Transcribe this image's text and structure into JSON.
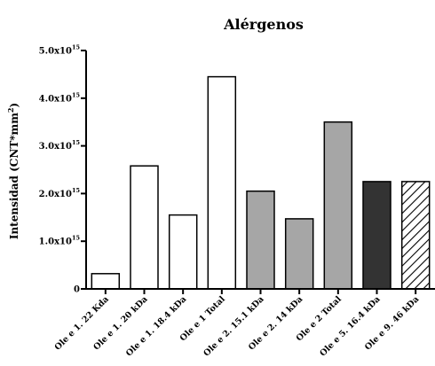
{
  "chart_data": {
    "type": "bar",
    "title": "Alérgenos",
    "ylabel": "Intensidad (CNT*mm²)",
    "xlabel": "",
    "ylim": [
      0,
      5000000000000000.0
    ],
    "yticks": [
      {
        "value": 0,
        "mantissa": "0",
        "exponent": ""
      },
      {
        "value": 1000000000000000.0,
        "mantissa": "1.0x10",
        "exponent": "15"
      },
      {
        "value": 2000000000000000.0,
        "mantissa": "2.0x10",
        "exponent": "15"
      },
      {
        "value": 3000000000000000.0,
        "mantissa": "3.0x10",
        "exponent": "15"
      },
      {
        "value": 4000000000000000.0,
        "mantissa": "4.0x10",
        "exponent": "15"
      },
      {
        "value": 5000000000000000.0,
        "mantissa": "5.0x10",
        "exponent": "15"
      }
    ],
    "categories": [
      "Ole e 1. 22 Kda",
      "Ole e 1. 20 kDa",
      "Ole e 1. 18.4 kDa",
      "Ole e 1 Total",
      "Ole e 2. 15.1 kDa",
      "Ole e 2. 14 kDa",
      "Ole e 2 Total",
      "Ole e 5. 16.4 kDa",
      "Ole e 9. 46 kDa"
    ],
    "values": [
      320000000000000.0,
      2580000000000000.0,
      1550000000000000.0,
      4450000000000000.0,
      2050000000000000.0,
      1470000000000000.0,
      3500000000000000.0,
      2250000000000000.0,
      2250000000000000.0
    ],
    "bar_fills": [
      "#ffffff",
      "#ffffff",
      "#ffffff",
      "#ffffff",
      "#a6a6a6",
      "#a6a6a6",
      "#a6a6a6",
      "#333333",
      "hatch"
    ],
    "grid": false,
    "legend": "none"
  }
}
